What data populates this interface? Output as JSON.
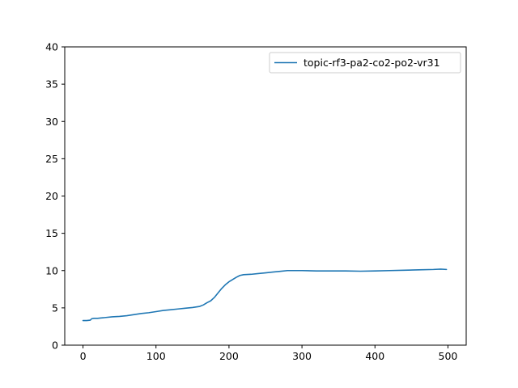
{
  "chart_data": {
    "type": "line",
    "title": "",
    "xlabel": "",
    "ylabel": "",
    "xlim": [
      -25,
      525
    ],
    "ylim": [
      0,
      40
    ],
    "xticks": [
      0,
      100,
      200,
      300,
      400,
      500
    ],
    "yticks": [
      0,
      5,
      10,
      15,
      20,
      25,
      30,
      35,
      40
    ],
    "grid": false,
    "legend": {
      "position": "upper right"
    },
    "series": [
      {
        "name": "topic-rf3-pa2-co2-po2-vr31",
        "color": "#1f77b4",
        "x": [
          0,
          5,
          10,
          12,
          15,
          20,
          25,
          30,
          40,
          50,
          60,
          70,
          80,
          90,
          100,
          110,
          120,
          130,
          140,
          150,
          160,
          165,
          170,
          175,
          180,
          185,
          190,
          195,
          200,
          205,
          210,
          215,
          220,
          230,
          240,
          250,
          260,
          270,
          280,
          290,
          300,
          320,
          340,
          360,
          380,
          400,
          420,
          440,
          460,
          480,
          490,
          498
        ],
        "y": [
          3.3,
          3.3,
          3.35,
          3.55,
          3.6,
          3.6,
          3.65,
          3.7,
          3.8,
          3.85,
          3.95,
          4.1,
          4.25,
          4.35,
          4.5,
          4.65,
          4.75,
          4.85,
          4.95,
          5.05,
          5.2,
          5.4,
          5.7,
          5.95,
          6.4,
          7.0,
          7.6,
          8.1,
          8.5,
          8.8,
          9.1,
          9.35,
          9.45,
          9.5,
          9.6,
          9.7,
          9.8,
          9.9,
          10.0,
          10.0,
          10.0,
          9.95,
          9.95,
          9.95,
          9.92,
          9.95,
          10.0,
          10.05,
          10.1,
          10.15,
          10.2,
          10.15
        ]
      }
    ]
  }
}
